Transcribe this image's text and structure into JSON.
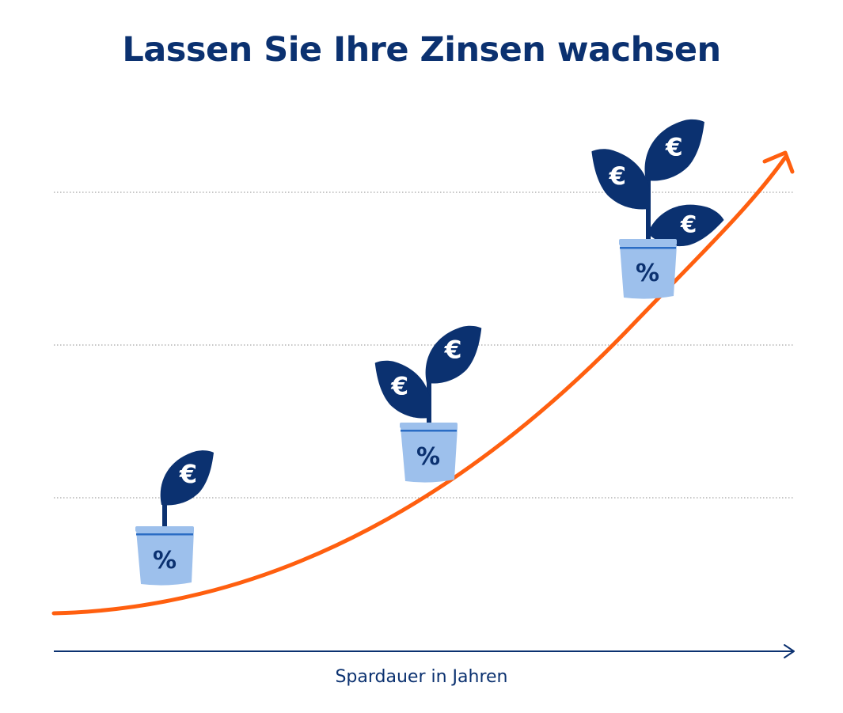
{
  "title": "Lassen Sie Ihre Zinsen wachsen",
  "x_axis_label": "Spardauer in Jahren",
  "pot_symbol": "%",
  "leaf_symbol": "€",
  "colors": {
    "navy": "#0b3170",
    "orange": "#ff5f0f",
    "pot_light": "#9dc0ec",
    "pot_band": "#2a6cc4",
    "gridline": "#8e8e8e"
  },
  "plants": [
    {
      "stage": "small",
      "leaf_count": 1
    },
    {
      "stage": "medium",
      "leaf_count": 2
    },
    {
      "stage": "large",
      "leaf_count": 3
    }
  ]
}
